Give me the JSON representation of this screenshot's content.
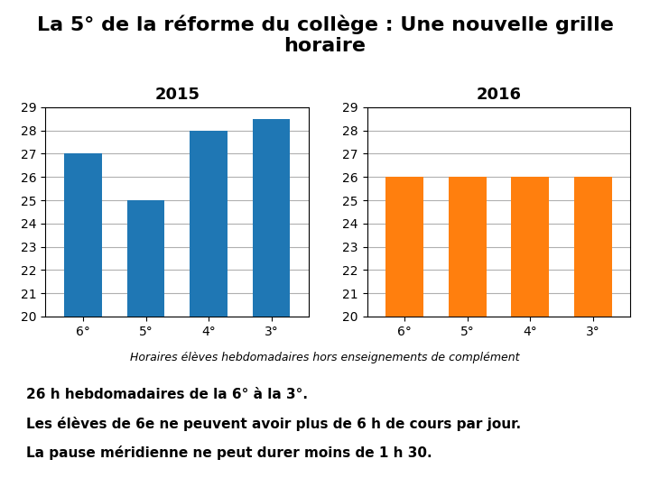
{
  "title": "La 5° de la réforme du collège : Une nouvelle grille horaire",
  "annotations": [
    "Horaires élèves hebdomadaires hors enseignements de complément",
    "26 h hebdomadaires de la 6° à la 3°.",
    "Les élèves de 6e ne peuvent avoir plus de 6 h de cours par jour.",
    "La pause méridienne ne peut durer moins de 1 h 30."
  ],
  "chart_data": [
    {
      "type": "bar",
      "title": "2015",
      "categories": [
        "6°",
        "5°",
        "4°",
        "3°"
      ],
      "values": [
        27,
        25,
        28,
        28.5
      ],
      "ylim": [
        20,
        29
      ],
      "yticks": [
        20,
        21,
        22,
        23,
        24,
        25,
        26,
        27,
        28,
        29
      ],
      "grid": true
    },
    {
      "type": "bar",
      "title": "2016",
      "categories": [
        "6°",
        "5°",
        "4°",
        "3°"
      ],
      "values": [
        26,
        26,
        26,
        26
      ],
      "ylim": [
        20,
        29
      ],
      "yticks": [
        20,
        21,
        22,
        23,
        24,
        25,
        26,
        27,
        28,
        29
      ],
      "grid": true
    }
  ]
}
